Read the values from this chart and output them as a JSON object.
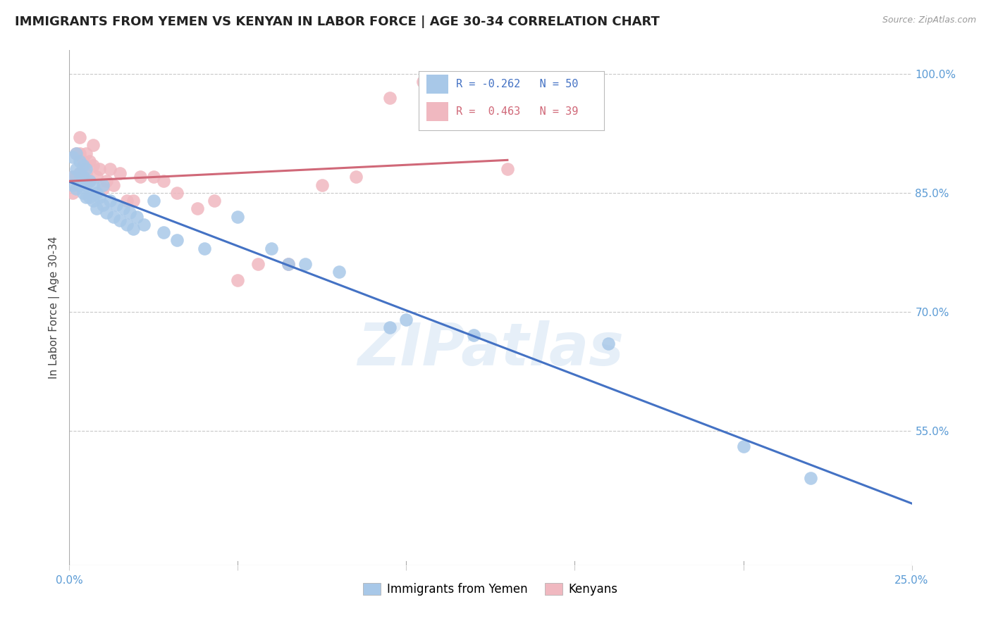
{
  "title": "IMMIGRANTS FROM YEMEN VS KENYAN IN LABOR FORCE | AGE 30-34 CORRELATION CHART",
  "source": "Source: ZipAtlas.com",
  "ylabel": "In Labor Force | Age 30-34",
  "xlim": [
    0.0,
    0.25
  ],
  "ylim": [
    0.38,
    1.03
  ],
  "xticks": [
    0.0,
    0.05,
    0.1,
    0.15,
    0.2,
    0.25
  ],
  "xticklabels": [
    "0.0%",
    "",
    "",
    "",
    "",
    "25.0%"
  ],
  "yticks": [
    0.55,
    0.7,
    0.85,
    1.0
  ],
  "yticklabels": [
    "55.0%",
    "70.0%",
    "85.0%",
    "100.0%"
  ],
  "grid_color": "#c8c8c8",
  "background_color": "#ffffff",
  "yemen_color": "#a8c8e8",
  "kenya_color": "#f0b8c0",
  "yemen_line_color": "#4472c4",
  "kenya_line_color": "#c0506070",
  "yemen_R": -0.262,
  "yemen_N": 50,
  "kenya_R": 0.463,
  "kenya_N": 39,
  "legend_label_yemen": "Immigrants from Yemen",
  "legend_label_kenya": "Kenyans",
  "watermark": "ZIPatlas",
  "title_fontsize": 13,
  "axis_label_fontsize": 11,
  "tick_fontsize": 11,
  "yemen_x": [
    0.001,
    0.001,
    0.001,
    0.002,
    0.002,
    0.002,
    0.003,
    0.003,
    0.003,
    0.004,
    0.004,
    0.004,
    0.005,
    0.005,
    0.005,
    0.006,
    0.006,
    0.007,
    0.007,
    0.008,
    0.008,
    0.009,
    0.01,
    0.01,
    0.011,
    0.012,
    0.013,
    0.014,
    0.015,
    0.016,
    0.017,
    0.018,
    0.019,
    0.02,
    0.022,
    0.025,
    0.028,
    0.032,
    0.04,
    0.05,
    0.06,
    0.065,
    0.07,
    0.08,
    0.095,
    0.1,
    0.12,
    0.16,
    0.2,
    0.22
  ],
  "yemen_y": [
    0.895,
    0.87,
    0.86,
    0.9,
    0.88,
    0.855,
    0.89,
    0.875,
    0.86,
    0.885,
    0.87,
    0.85,
    0.88,
    0.86,
    0.845,
    0.865,
    0.845,
    0.86,
    0.84,
    0.85,
    0.83,
    0.845,
    0.86,
    0.835,
    0.825,
    0.84,
    0.82,
    0.835,
    0.815,
    0.83,
    0.81,
    0.825,
    0.805,
    0.82,
    0.81,
    0.84,
    0.8,
    0.79,
    0.78,
    0.82,
    0.78,
    0.76,
    0.76,
    0.75,
    0.68,
    0.69,
    0.67,
    0.66,
    0.53,
    0.49
  ],
  "kenya_x": [
    0.001,
    0.001,
    0.002,
    0.002,
    0.003,
    0.003,
    0.003,
    0.004,
    0.004,
    0.005,
    0.005,
    0.006,
    0.006,
    0.007,
    0.007,
    0.008,
    0.009,
    0.01,
    0.011,
    0.012,
    0.013,
    0.015,
    0.017,
    0.019,
    0.021,
    0.025,
    0.028,
    0.032,
    0.038,
    0.043,
    0.05,
    0.056,
    0.065,
    0.075,
    0.085,
    0.095,
    0.105,
    0.115,
    0.13
  ],
  "kenya_y": [
    0.87,
    0.85,
    0.9,
    0.87,
    0.92,
    0.9,
    0.875,
    0.89,
    0.87,
    0.9,
    0.875,
    0.89,
    0.865,
    0.91,
    0.885,
    0.87,
    0.88,
    0.855,
    0.865,
    0.88,
    0.86,
    0.875,
    0.84,
    0.84,
    0.87,
    0.87,
    0.865,
    0.85,
    0.83,
    0.84,
    0.74,
    0.76,
    0.76,
    0.86,
    0.87,
    0.97,
    0.99,
    0.97,
    0.88
  ],
  "yemen_line_start_x": 0.0,
  "yemen_line_end_x": 0.25,
  "kenya_line_start_x": 0.0,
  "kenya_line_end_x": 0.13
}
